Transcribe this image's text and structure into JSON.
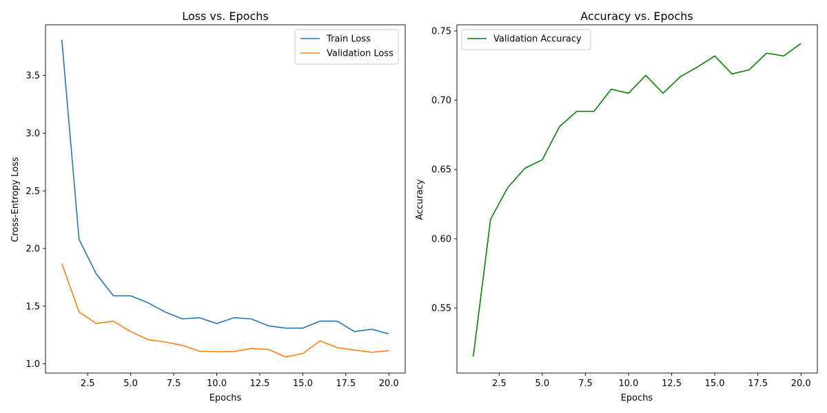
{
  "chart_data": [
    {
      "type": "line",
      "title": "Loss vs. Epochs",
      "xlabel": "Epochs",
      "ylabel": "Cross-Entropy Loss",
      "xlim": [
        0.05,
        20.95
      ],
      "ylim": [
        0.92,
        3.94
      ],
      "x_ticks": [
        2.5,
        5.0,
        7.5,
        10.0,
        12.5,
        15.0,
        17.5,
        20.0
      ],
      "y_ticks": [
        1.0,
        1.5,
        2.0,
        2.5,
        3.0,
        3.5
      ],
      "legend_position": "top-right",
      "grid": false,
      "x": [
        1,
        2,
        3,
        4,
        5,
        6,
        7,
        8,
        9,
        10,
        11,
        12,
        13,
        14,
        15,
        16,
        17,
        18,
        19,
        20
      ],
      "series": [
        {
          "name": "Train Loss",
          "color": "#1f77b4",
          "values": [
            3.81,
            2.08,
            1.78,
            1.59,
            1.59,
            1.53,
            1.45,
            1.39,
            1.4,
            1.35,
            1.4,
            1.39,
            1.33,
            1.31,
            1.31,
            1.37,
            1.37,
            1.28,
            1.3,
            1.26
          ]
        },
        {
          "name": "Validation Loss",
          "color": "#ff7f0e",
          "values": [
            1.87,
            1.45,
            1.35,
            1.37,
            1.28,
            1.21,
            1.19,
            1.16,
            1.11,
            1.105,
            1.107,
            1.133,
            1.125,
            1.06,
            1.09,
            1.2,
            1.14,
            1.12,
            1.1,
            1.115
          ]
        }
      ]
    },
    {
      "type": "line",
      "title": "Accuracy vs. Epochs",
      "xlabel": "Epochs",
      "ylabel": "Accuracy",
      "xlim": [
        0.05,
        20.95
      ],
      "ylim": [
        0.503,
        0.7545
      ],
      "x_ticks": [
        2.5,
        5.0,
        7.5,
        10.0,
        12.5,
        15.0,
        17.5,
        20.0
      ],
      "y_ticks": [
        0.55,
        0.6,
        0.65,
        0.7,
        0.75
      ],
      "legend_position": "top-left",
      "grid": false,
      "x": [
        1,
        2,
        3,
        4,
        5,
        6,
        7,
        8,
        9,
        10,
        11,
        12,
        13,
        14,
        15,
        16,
        17,
        18,
        19,
        20
      ],
      "series": [
        {
          "name": "Validation Accuracy",
          "color": "#008000",
          "values": [
            0.515,
            0.614,
            0.637,
            0.651,
            0.657,
            0.681,
            0.692,
            0.692,
            0.708,
            0.705,
            0.718,
            0.705,
            0.717,
            0.724,
            0.732,
            0.719,
            0.722,
            0.734,
            0.732,
            0.741
          ]
        }
      ]
    }
  ]
}
